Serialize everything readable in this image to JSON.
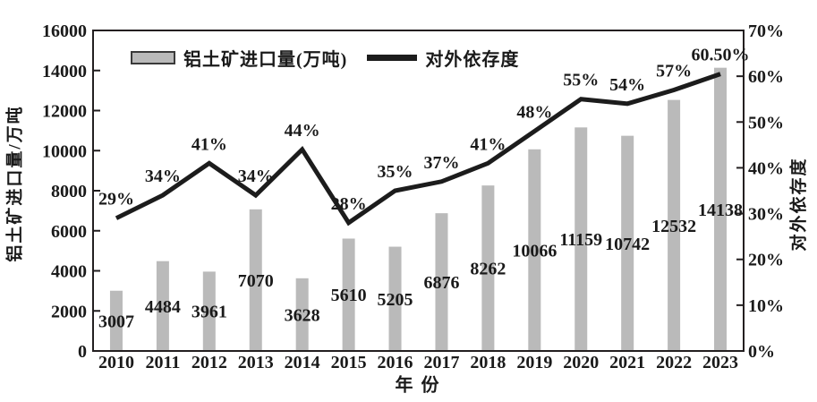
{
  "chart_data": {
    "type": "bar",
    "title": "",
    "categories": [
      "2010",
      "2011",
      "2012",
      "2013",
      "2014",
      "2015",
      "2016",
      "2017",
      "2018",
      "2019",
      "2020",
      "2021",
      "2022",
      "2023"
    ],
    "series": [
      {
        "name": "铝土矿进口量(万吨)",
        "kind": "bar",
        "axis": "left",
        "values": [
          3007,
          4484,
          3961,
          7070,
          3628,
          5610,
          5205,
          6876,
          8262,
          10066,
          11159,
          10742,
          12532,
          14138
        ],
        "labels": [
          "3007",
          "4484",
          "3961",
          "7070",
          "3628",
          "5610",
          "5205",
          "6876",
          "8262",
          "10066",
          "11159",
          "10742",
          "12532",
          "14138"
        ],
        "color": "#bababa"
      },
      {
        "name": "对外依存度",
        "kind": "line",
        "axis": "right",
        "values": [
          29,
          34,
          41,
          34,
          44,
          28,
          35,
          37,
          41,
          48,
          55,
          54,
          57,
          60.5
        ],
        "labels": [
          "29%",
          "34%",
          "41%",
          "34%",
          "44%",
          "28%",
          "35%",
          "37%",
          "41%",
          "48%",
          "55%",
          "54%",
          "57%",
          "60.50%"
        ],
        "color": "#1c1c1c"
      }
    ],
    "left_axis": {
      "title": "铝土矿进口量/万吨",
      "min": 0,
      "max": 16000,
      "step": 2000,
      "ticks": [
        "0",
        "2000",
        "4000",
        "6000",
        "8000",
        "10000",
        "12000",
        "14000",
        "16000"
      ]
    },
    "right_axis": {
      "title": "对外依存度",
      "min": 0,
      "max": 70,
      "step": 10,
      "ticks": [
        "0%",
        "10%",
        "20%",
        "30%",
        "40%",
        "50%",
        "60%",
        "70%"
      ]
    },
    "x_axis": {
      "title": "年 份"
    },
    "legend_position": "top-inside",
    "grid": false
  },
  "colors": {
    "bar": "#bababa",
    "line": "#1c1c1c",
    "axis": "#231f20",
    "text": "#1a1a1a",
    "background": "#ffffff"
  }
}
